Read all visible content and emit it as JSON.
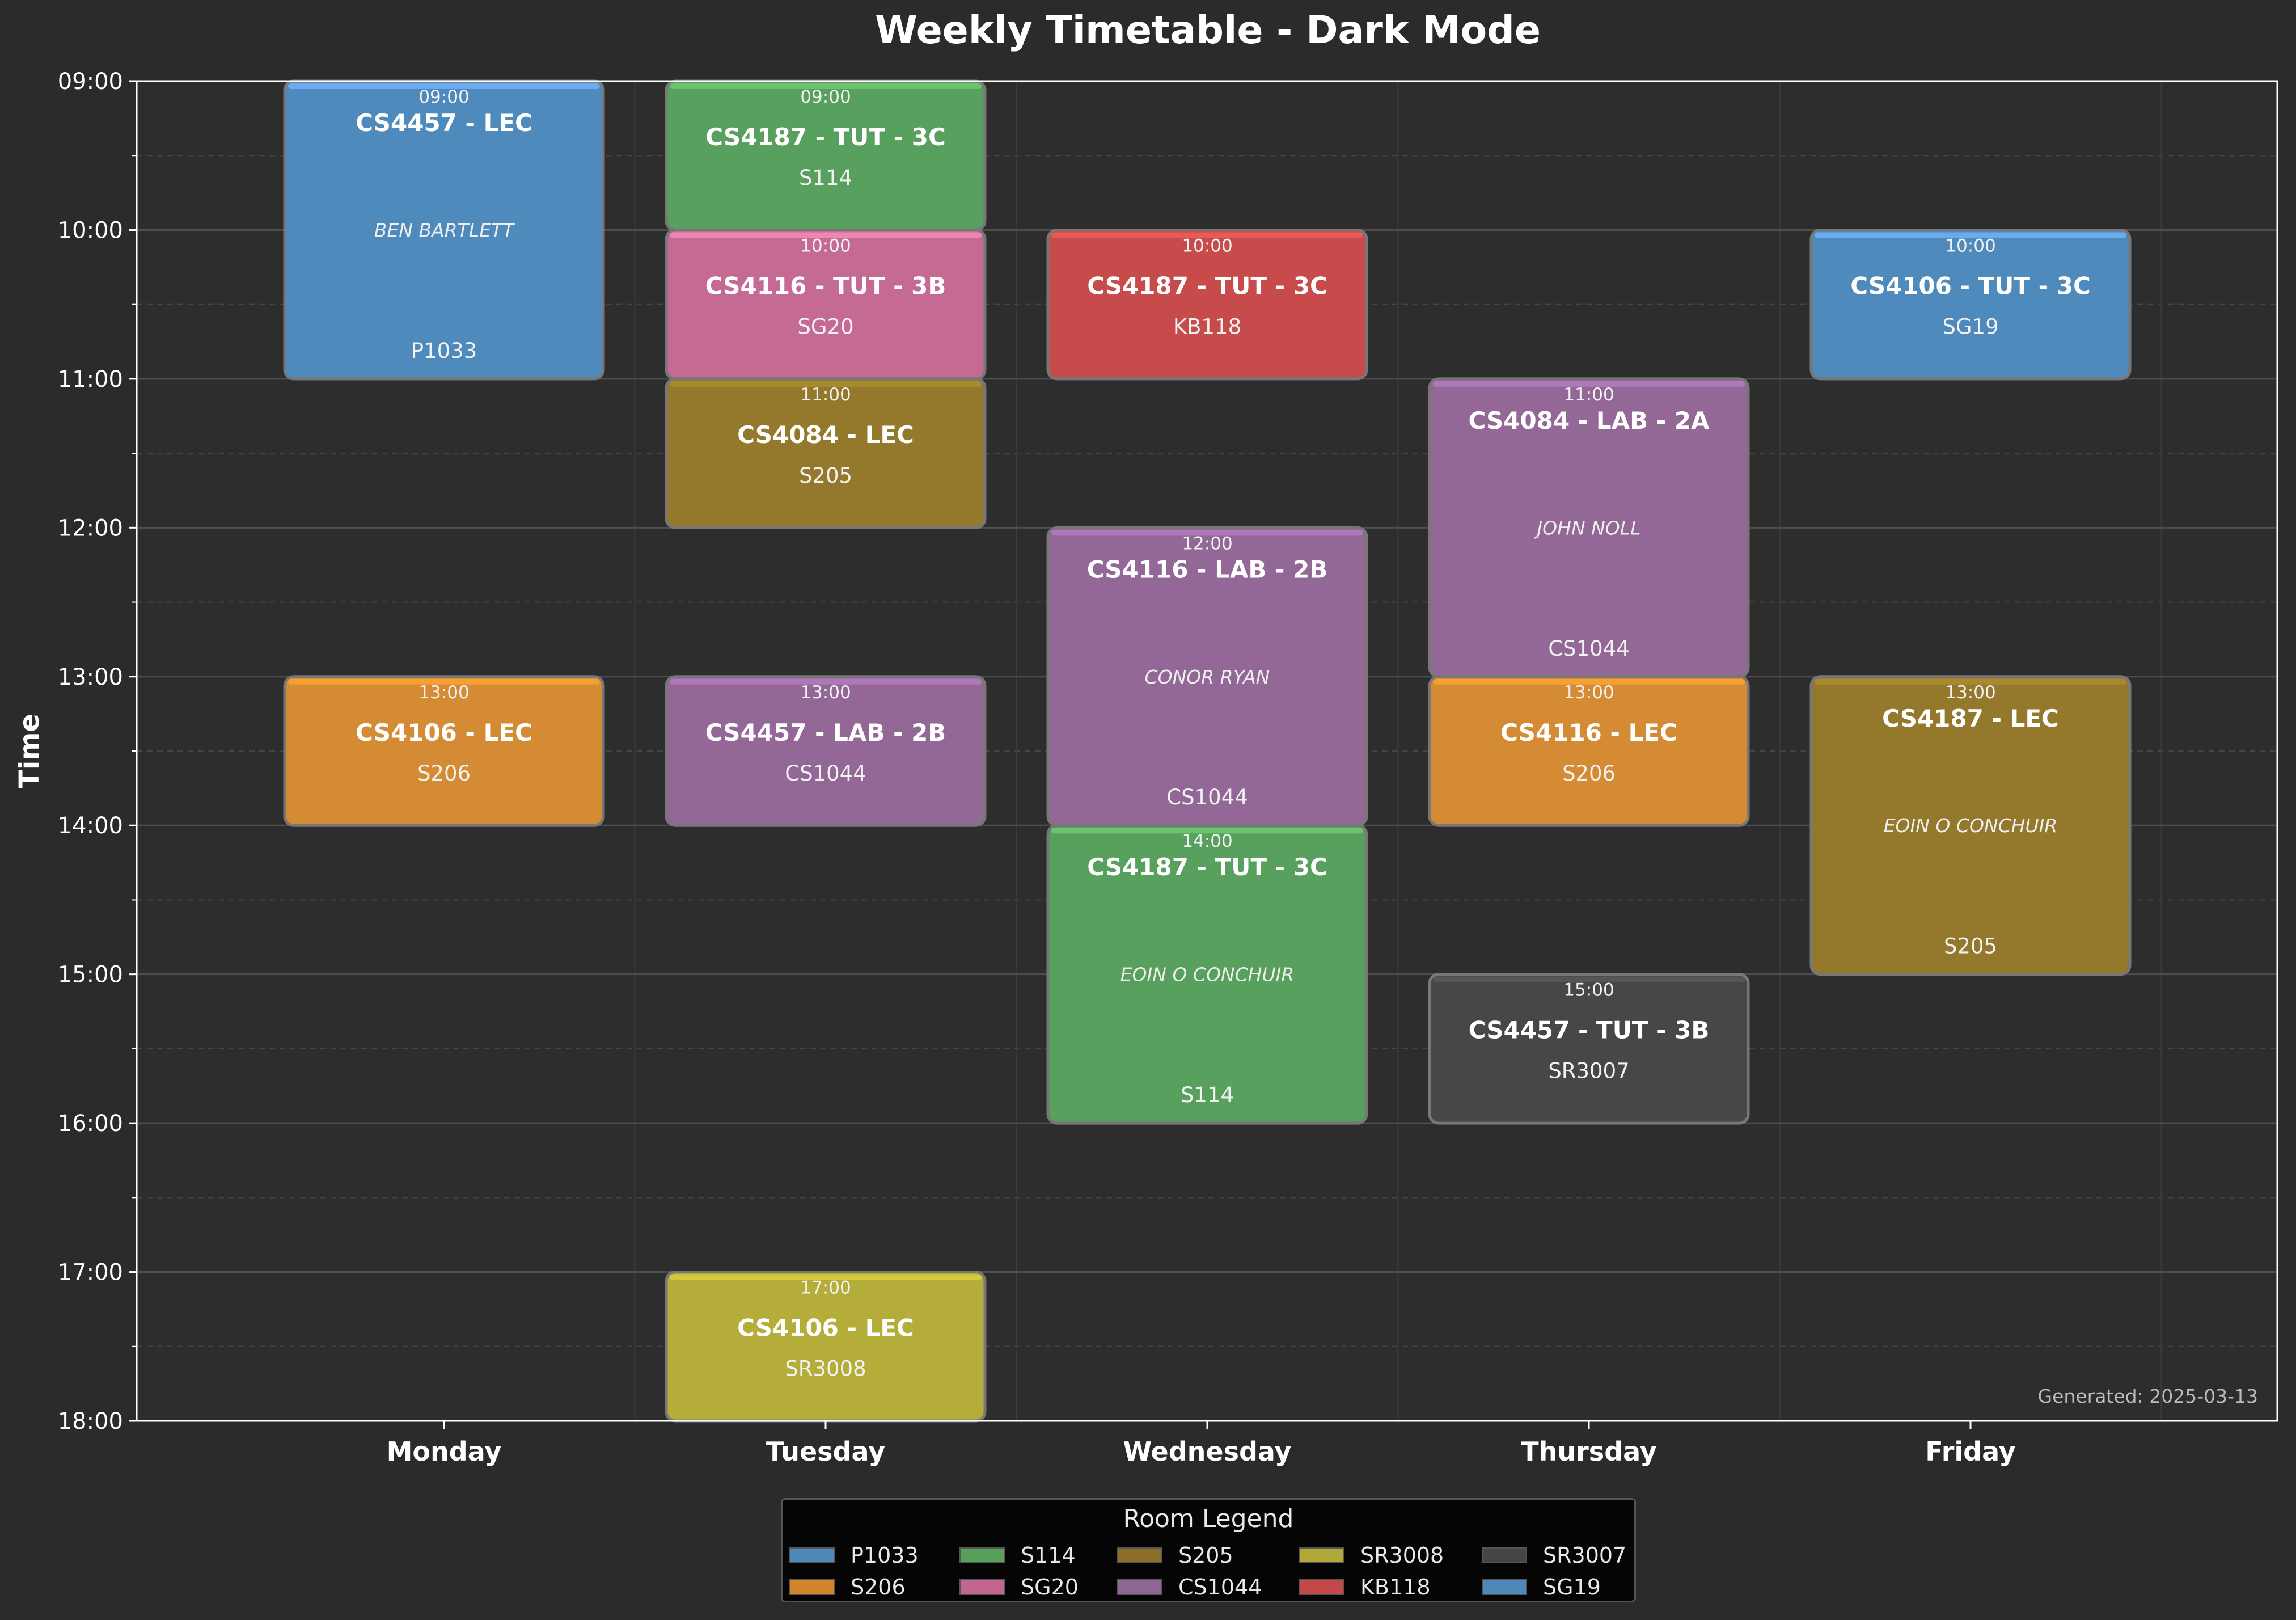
{
  "chart_data": {
    "type": "timetable",
    "title": "Weekly Timetable - Dark Mode",
    "ylabel": "Time",
    "footnote": "Generated: 2025-03-13",
    "days": [
      "Monday",
      "Tuesday",
      "Wednesday",
      "Thursday",
      "Friday"
    ],
    "time_ticks": [
      "09:00",
      "10:00",
      "11:00",
      "12:00",
      "13:00",
      "14:00",
      "15:00",
      "16:00",
      "17:00",
      "18:00"
    ],
    "ylim": [
      9,
      18
    ],
    "grid": true,
    "legend": {
      "title": "Room Legend",
      "placement": "bottom-center",
      "items": [
        {
          "label": "P1033",
          "color": "#4e87b8"
        },
        {
          "label": "S114",
          "color": "#57a05a"
        },
        {
          "label": "S205",
          "color": "#8c7028"
        },
        {
          "label": "SR3008",
          "color": "#b0a838"
        },
        {
          "label": "SR3007",
          "color": "#454545"
        },
        {
          "label": "S206",
          "color": "#d2862c"
        },
        {
          "label": "SG20",
          "color": "#c26690"
        },
        {
          "label": "CS1044",
          "color": "#8e6694"
        },
        {
          "label": "KB118",
          "color": "#c2484a"
        },
        {
          "label": "SG19",
          "color": "#4e87b8"
        }
      ]
    },
    "events": [
      {
        "day": "Monday",
        "start": 9,
        "end": 11,
        "start_label": "09:00",
        "title": "CS4457 - LEC",
        "lecturer": "BEN BARTLETT",
        "room": "P1033",
        "color": "#4f8abc",
        "accent": "#6aaaf0"
      },
      {
        "day": "Monday",
        "start": 13,
        "end": 14,
        "start_label": "13:00",
        "title": "CS4106 - LEC",
        "room": "S206",
        "color": "#d48b33",
        "accent": "#f5a035"
      },
      {
        "day": "Tuesday",
        "start": 9,
        "end": 10,
        "start_label": "09:00",
        "title": "CS4187 - TUT - 3C",
        "room": "S114",
        "color": "#57a05d",
        "accent": "#6cc36f"
      },
      {
        "day": "Tuesday",
        "start": 10,
        "end": 11,
        "start_label": "10:00",
        "title": "CS4116 - TUT - 3B",
        "room": "SG20",
        "color": "#c56b93",
        "accent": "#ee86b5"
      },
      {
        "day": "Tuesday",
        "start": 11,
        "end": 12,
        "start_label": "11:00",
        "title": "CS4084 - LEC",
        "room": "S205",
        "color": "#94782b",
        "accent": "#a88a2e"
      },
      {
        "day": "Tuesday",
        "start": 13,
        "end": 14,
        "start_label": "13:00",
        "title": "CS4457 - LAB - 2B",
        "room": "CS1044",
        "color": "#936897",
        "accent": "#b078b8"
      },
      {
        "day": "Tuesday",
        "start": 17,
        "end": 18,
        "start_label": "17:00",
        "title": "CS4106 - LEC",
        "room": "SR3008",
        "color": "#b5ad3a",
        "accent": "#d4c93a"
      },
      {
        "day": "Wednesday",
        "start": 10,
        "end": 11,
        "start_label": "10:00",
        "title": "CS4187 - TUT - 3C",
        "room": "KB118",
        "color": "#c84b4c",
        "accent": "#e85a55"
      },
      {
        "day": "Wednesday",
        "start": 12,
        "end": 14,
        "start_label": "12:00",
        "title": "CS4116 - LAB - 2B",
        "lecturer": "CONOR RYAN",
        "room": "CS1044",
        "color": "#936897",
        "accent": "#b078b8"
      },
      {
        "day": "Wednesday",
        "start": 14,
        "end": 16,
        "start_label": "14:00",
        "title": "CS4187 - TUT - 3C",
        "lecturer": "EOIN O CONCHUIR",
        "room": "S114",
        "color": "#57a05d",
        "accent": "#6cc36f"
      },
      {
        "day": "Thursday",
        "start": 11,
        "end": 13,
        "start_label": "11:00",
        "title": "CS4084 - LAB - 2A",
        "lecturer": "JOHN NOLL",
        "room": "CS1044",
        "color": "#936897",
        "accent": "#b078b8"
      },
      {
        "day": "Thursday",
        "start": 13,
        "end": 14,
        "start_label": "13:00",
        "title": "CS4116 - LEC",
        "room": "S206",
        "color": "#d48b33",
        "accent": "#f5a035"
      },
      {
        "day": "Thursday",
        "start": 15,
        "end": 16,
        "start_label": "15:00",
        "title": "CS4457 - TUT - 3B",
        "room": "SR3007",
        "color": "#474747",
        "accent": "#555555"
      },
      {
        "day": "Friday",
        "start": 10,
        "end": 11,
        "start_label": "10:00",
        "title": "CS4106 - TUT - 3C",
        "room": "SG19",
        "color": "#4f8abc",
        "accent": "#6aaaf0"
      },
      {
        "day": "Friday",
        "start": 13,
        "end": 15,
        "start_label": "13:00",
        "title": "CS4187 - LEC",
        "lecturer": "EOIN O CONCHUIR",
        "room": "S205",
        "color": "#94782b",
        "accent": "#a88a2e"
      }
    ]
  }
}
